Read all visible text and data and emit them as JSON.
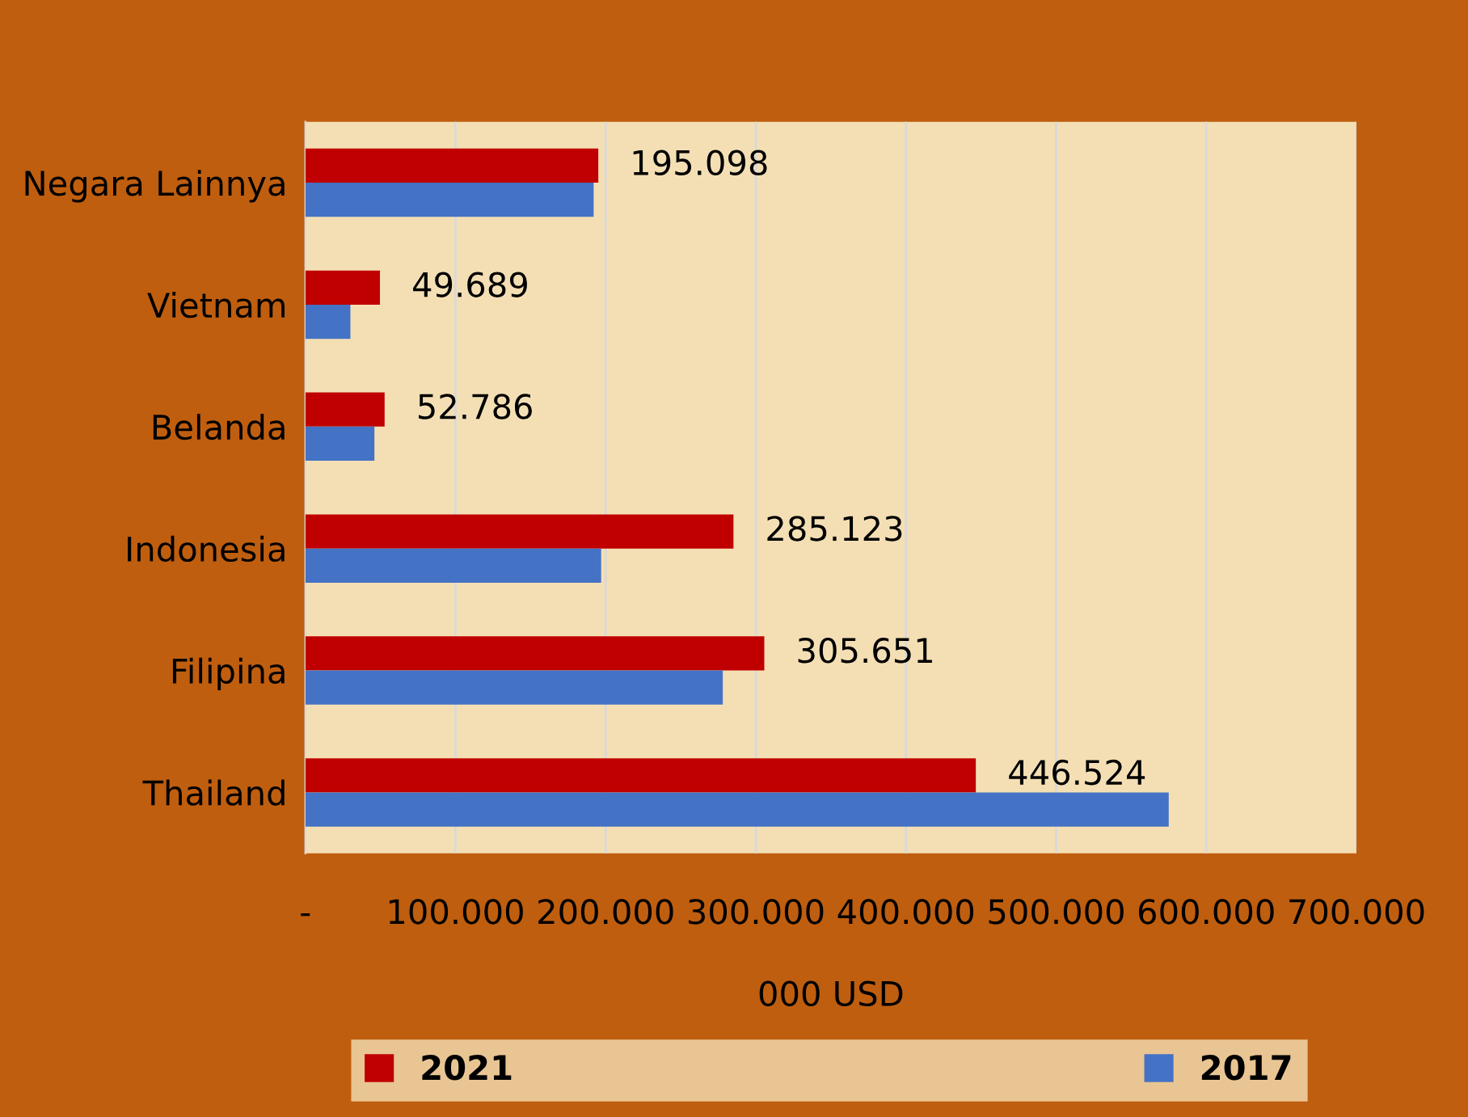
{
  "chart_data": {
    "type": "bar",
    "orientation": "horizontal",
    "xlabel": "000 USD",
    "categories": [
      "Negara Lainnya",
      "Vietnam",
      "Belanda",
      "Indonesia",
      "Filipina",
      "Thailand"
    ],
    "series": [
      {
        "name": "2021",
        "color": "#c00000",
        "values": [
          195098,
          49689,
          52786,
          285123,
          305651,
          446524
        ],
        "value_labels": [
          "195.098",
          "49.689",
          "52.786",
          "285.123",
          "305.651",
          "446.524"
        ]
      },
      {
        "name": "2017",
        "color": "#4472c4",
        "values": [
          192000,
          30000,
          46000,
          197000,
          278000,
          575000
        ]
      }
    ],
    "xlim": [
      0,
      700000
    ],
    "xticks": [
      {
        "value": 0,
        "label": "-"
      },
      {
        "value": 100000,
        "label": "100.000"
      },
      {
        "value": 200000,
        "label": "200.000"
      },
      {
        "value": 300000,
        "label": "300.000"
      },
      {
        "value": 400000,
        "label": "400.000"
      },
      {
        "value": 500000,
        "label": "500.000"
      },
      {
        "value": 600000,
        "label": "600.000"
      },
      {
        "value": 700000,
        "label": "700.000"
      }
    ],
    "grid": "x",
    "legend": "bottom"
  }
}
